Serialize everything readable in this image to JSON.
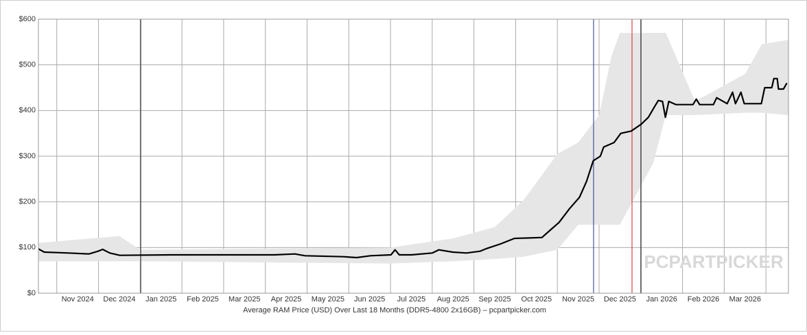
{
  "chart_data": {
    "type": "line",
    "title": "Average RAM Price (USD) Over Last 18 Months (DDR5-4800 2x16GB) – pcpartpicker.com",
    "watermark": "PCPARTPICKER",
    "xlim": [
      -0.44,
      17.54
    ],
    "ylim": [
      0,
      600
    ],
    "xticks": [
      {
        "value": 0,
        "label": "Nov 2024"
      },
      {
        "value": 1,
        "label": "Dec 2024"
      },
      {
        "value": 2,
        "label": "Jan 2025"
      },
      {
        "value": 3,
        "label": "Feb 2025"
      },
      {
        "value": 4,
        "label": "Mar 2025"
      },
      {
        "value": 5,
        "label": "Apr 2025"
      },
      {
        "value": 6,
        "label": "May 2025"
      },
      {
        "value": 7,
        "label": "Jun 2025"
      },
      {
        "value": 8,
        "label": "Jul 2025"
      },
      {
        "value": 9,
        "label": "Aug 2025"
      },
      {
        "value": 10,
        "label": "Sep 2025"
      },
      {
        "value": 11,
        "label": "Oct 2025"
      },
      {
        "value": 12,
        "label": "Nov 2025"
      },
      {
        "value": 13,
        "label": "Dec 2025"
      },
      {
        "value": 14,
        "label": "Jan 2026"
      },
      {
        "value": 15,
        "label": "Feb 2026"
      },
      {
        "value": 16,
        "label": "Mar 2026"
      },
      {
        "value": 17,
        "label": null
      }
    ],
    "yticks": [
      {
        "value": 0,
        "label": "$0"
      },
      {
        "value": 100,
        "label": "$100"
      },
      {
        "value": 200,
        "label": "$200"
      },
      {
        "value": 300,
        "label": "$300"
      },
      {
        "value": 400,
        "label": "$400"
      },
      {
        "value": 500,
        "label": "$500"
      },
      {
        "value": 600,
        "label": "$600"
      }
    ],
    "grid": true,
    "band": {
      "color": "#e6e6e6",
      "x": [
        -0.44,
        1.5,
        2,
        8,
        9.5,
        10.5,
        11.2,
        12,
        12.5,
        13.0,
        13.3,
        13.5,
        14.3,
        14.6,
        15.3,
        16.5,
        16.9,
        17.54
      ],
      "low": [
        70,
        70,
        70,
        65,
        70,
        75,
        80,
        95,
        150,
        150,
        150,
        150,
        285,
        390,
        390,
        395,
        395,
        390
      ],
      "high": [
        110,
        125,
        95,
        100,
        120,
        145,
        205,
        305,
        330,
        390,
        520,
        570,
        570,
        570,
        420,
        480,
        545,
        555
      ]
    },
    "series": [
      {
        "color": "#000000",
        "x": [
          -0.44,
          -0.3,
          0.28,
          0.77,
          0.99,
          1.1,
          1.27,
          1.51,
          2.75,
          4.06,
          5.21,
          5.71,
          5.95,
          6.86,
          7.19,
          7.52,
          8.01,
          8.11,
          8.21,
          8.5,
          9.0,
          9.16,
          9.49,
          9.82,
          10.15,
          10.31,
          10.64,
          10.97,
          11.63,
          11.79,
          12.04,
          12.29,
          12.53,
          12.7,
          12.86,
          13.03,
          13.11,
          13.36,
          13.52,
          13.77,
          14.01,
          14.18,
          14.34,
          14.42,
          14.52,
          14.59,
          14.67,
          14.84,
          15.25,
          15.33,
          15.41,
          15.74,
          15.82,
          16.07,
          16.2,
          16.27,
          16.4,
          16.48,
          16.89,
          16.97,
          17.14,
          17.19,
          17.27,
          17.3,
          17.42,
          17.5
        ],
        "values": [
          97,
          90,
          88,
          86,
          92,
          96,
          88,
          83,
          84,
          84,
          84,
          86,
          82,
          80,
          78,
          82,
          84,
          95,
          84,
          84,
          88,
          95,
          90,
          88,
          92,
          98,
          108,
          120,
          122,
          135,
          155,
          185,
          210,
          245,
          290,
          300,
          320,
          330,
          350,
          355,
          370,
          385,
          410,
          422,
          420,
          385,
          420,
          413,
          413,
          425,
          413,
          413,
          428,
          415,
          440,
          415,
          440,
          415,
          415,
          450,
          450,
          470,
          470,
          447,
          447,
          460
        ]
      }
    ]
  }
}
